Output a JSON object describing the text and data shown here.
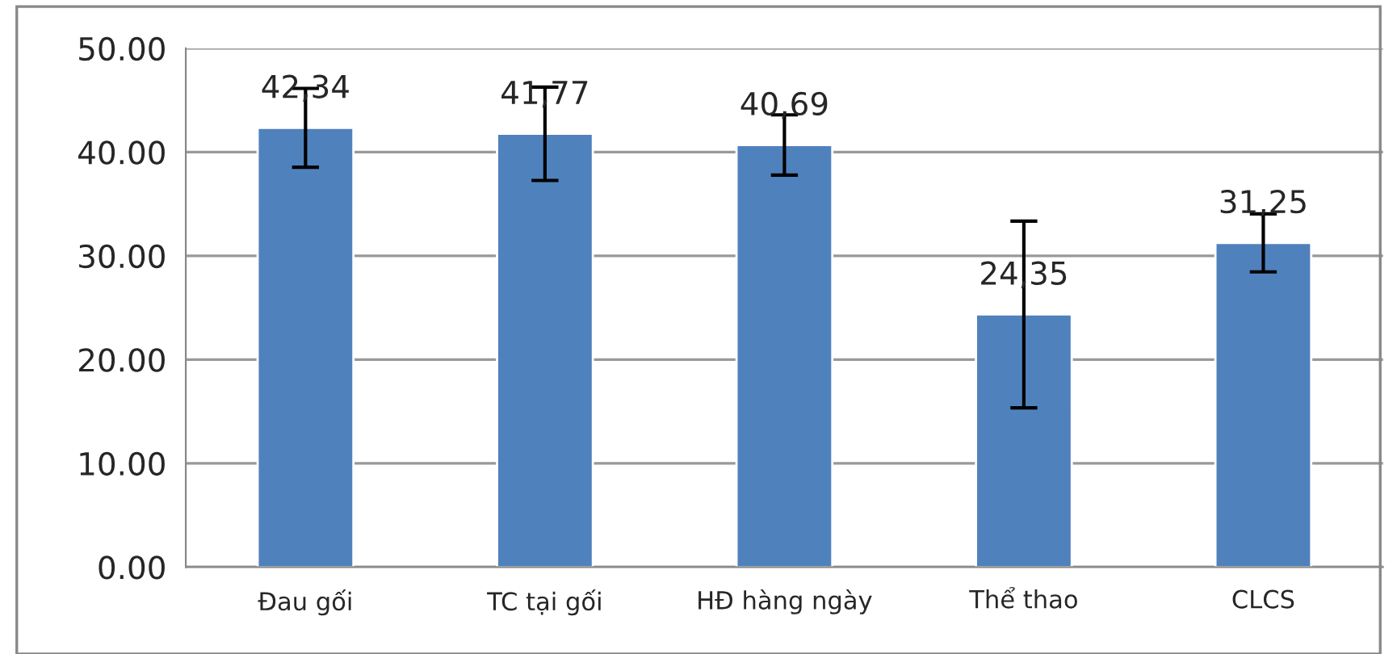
{
  "chart_data": {
    "type": "bar",
    "categories": [
      "Đau gối",
      "TC tại gối",
      "HĐ hàng ngày",
      "Thể thao",
      "CLCS"
    ],
    "values": [
      42.34,
      41.77,
      40.69,
      24.35,
      31.25
    ],
    "value_labels": [
      "42,34",
      "41,77",
      "40,69",
      "24,35",
      "31,25"
    ],
    "errors": [
      3.8,
      4.5,
      2.9,
      9.0,
      2.8
    ],
    "color": "#4f81bd",
    "ylim": [
      0,
      50
    ],
    "yticks": [
      {
        "value": 0,
        "label": "0.00"
      },
      {
        "value": 10,
        "label": "10.00"
      },
      {
        "value": 20,
        "label": "20.00"
      },
      {
        "value": 30,
        "label": "30.00"
      },
      {
        "value": 40,
        "label": "40.00"
      },
      {
        "value": 50,
        "label": "50.00"
      }
    ],
    "grid": "y",
    "legend": false
  }
}
